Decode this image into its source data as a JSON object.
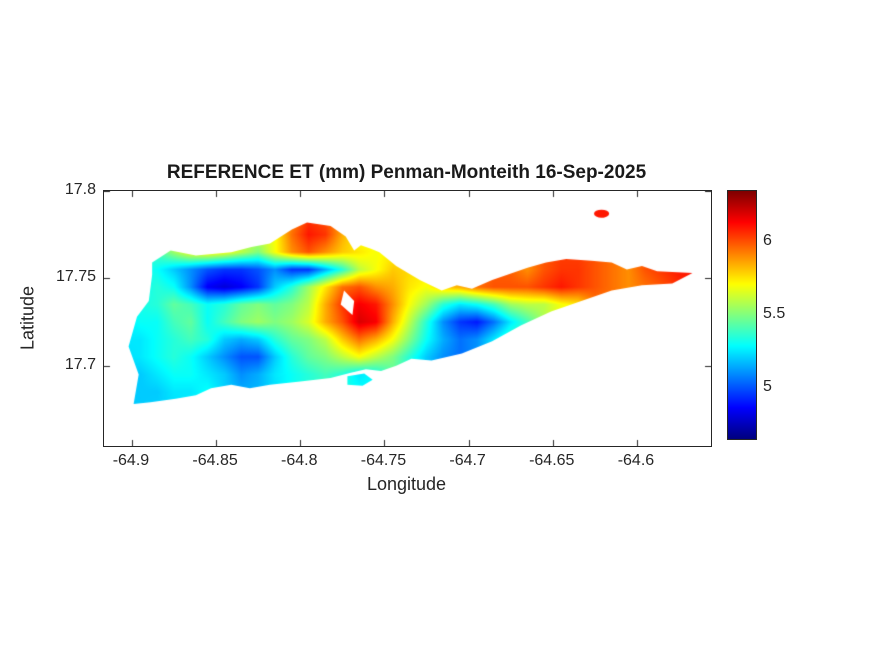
{
  "figure": {
    "title": "REFERENCE ET (mm) Penman-Monteith 16-Sep-2025",
    "background": "#ffffff",
    "axis_color": "#262626"
  },
  "axes": {
    "xlabel": "Longitude",
    "ylabel": "Latitude",
    "xlim": [
      -64.9166,
      -64.556
    ],
    "ylim": [
      17.654,
      17.8
    ],
    "xticks": [
      -64.9,
      -64.85,
      -64.8,
      -64.75,
      -64.7,
      -64.65,
      -64.6
    ],
    "xtick_labels": [
      "-64.9",
      "-64.85",
      "-64.8",
      "-64.75",
      "-64.7",
      "-64.65",
      "-64.6"
    ],
    "yticks": [
      17.8,
      17.75,
      17.7
    ],
    "ytick_labels": [
      "17.8",
      "17.75",
      "17.7"
    ],
    "axis_color": "#262626",
    "grid": false,
    "box": true
  },
  "colorbar": {
    "colormap": "jet",
    "vmin": 4.65,
    "vmax": 6.35,
    "ticks": [
      6,
      5.5,
      5
    ],
    "tick_labels": [
      "6",
      "5.5",
      "5"
    ],
    "position": "right"
  },
  "chart_data": {
    "type": "heatmap",
    "title": "REFERENCE ET (mm) Penman-Monteith 16-Sep-2025",
    "xlabel": "Longitude",
    "ylabel": "Latitude",
    "units": "mm",
    "colormap": "jet",
    "value_range": [
      4.65,
      6.35
    ],
    "legend_position": "right-colorbar",
    "grid": {
      "lon_start": -64.905,
      "lon_step": 0.01,
      "ncols": 36,
      "lat_start": 17.785,
      "lat_step": -0.01,
      "nrows": 13,
      "values": [
        [
          null,
          null,
          null,
          null,
          null,
          null,
          null,
          null,
          null,
          null,
          5.9,
          6.05,
          6.0,
          null,
          null,
          null,
          null,
          null,
          null,
          null,
          null,
          null,
          null,
          null,
          null,
          null,
          null,
          null,
          6.1,
          null,
          null,
          null,
          null,
          null,
          null,
          null
        ],
        [
          null,
          null,
          null,
          null,
          null,
          null,
          null,
          null,
          null,
          5.7,
          5.95,
          6.1,
          6.05,
          5.85,
          5.7,
          null,
          null,
          null,
          null,
          null,
          null,
          null,
          null,
          null,
          null,
          null,
          null,
          null,
          null,
          null,
          null,
          null,
          null,
          null,
          null,
          null
        ],
        [
          null,
          null,
          5.4,
          5.55,
          5.7,
          5.75,
          5.7,
          5.6,
          5.5,
          5.7,
          5.9,
          6.0,
          5.9,
          5.8,
          5.75,
          5.7,
          null,
          null,
          null,
          null,
          null,
          null,
          null,
          null,
          null,
          null,
          null,
          null,
          null,
          null,
          null,
          null,
          null,
          null,
          null,
          null
        ],
        [
          null,
          null,
          5.3,
          5.2,
          5.1,
          5.0,
          4.95,
          4.95,
          5.0,
          5.1,
          4.95,
          4.95,
          5.15,
          5.35,
          5.6,
          5.7,
          5.8,
          null,
          null,
          null,
          null,
          null,
          null,
          null,
          5.9,
          6.0,
          6.05,
          6.05,
          6.0,
          5.95,
          5.9,
          6.0,
          6.05,
          6.1,
          6.1,
          null
        ],
        [
          null,
          5.3,
          5.35,
          5.3,
          5.1,
          4.85,
          4.8,
          4.85,
          4.95,
          5.2,
          5.35,
          5.55,
          5.75,
          5.95,
          6.0,
          5.9,
          5.85,
          5.75,
          5.7,
          5.8,
          5.85,
          5.95,
          6.0,
          6.0,
          6.0,
          6.05,
          6.1,
          6.05,
          6.0,
          5.95,
          5.9,
          5.95,
          6.0,
          null,
          null,
          null
        ],
        [
          null,
          null,
          5.35,
          5.45,
          5.4,
          5.3,
          5.35,
          5.45,
          5.5,
          5.45,
          5.5,
          5.6,
          5.85,
          6.05,
          6.15,
          6.1,
          5.9,
          5.7,
          5.55,
          5.35,
          5.25,
          5.3,
          5.4,
          5.55,
          5.6,
          5.6,
          5.7,
          5.75,
          null,
          null,
          null,
          null,
          null,
          null,
          null,
          null
        ],
        [
          null,
          null,
          5.3,
          5.4,
          5.45,
          5.3,
          5.4,
          5.5,
          5.55,
          5.5,
          5.55,
          5.65,
          5.85,
          6.0,
          6.2,
          6.15,
          5.85,
          5.6,
          5.35,
          5.1,
          4.95,
          4.9,
          5.05,
          5.25,
          5.4,
          null,
          null,
          null,
          null,
          null,
          null,
          null,
          null,
          null,
          null,
          null
        ],
        [
          null,
          5.25,
          5.3,
          5.35,
          5.4,
          5.35,
          5.2,
          5.15,
          5.2,
          5.35,
          5.45,
          5.5,
          5.6,
          5.8,
          5.95,
          5.85,
          5.7,
          5.5,
          5.3,
          5.15,
          5.05,
          5.1,
          5.25,
          5.4,
          null,
          null,
          null,
          null,
          null,
          null,
          null,
          null,
          null,
          null,
          null,
          null
        ],
        [
          null,
          5.25,
          5.3,
          5.35,
          5.3,
          5.2,
          5.1,
          5.0,
          5.0,
          5.2,
          5.35,
          5.45,
          5.5,
          5.6,
          5.7,
          5.6,
          5.5,
          5.35,
          5.2,
          5.1,
          5.05,
          null,
          null,
          null,
          null,
          null,
          null,
          null,
          null,
          null,
          null,
          null,
          null,
          null,
          null,
          null
        ],
        [
          null,
          5.2,
          5.25,
          5.3,
          5.3,
          5.25,
          5.2,
          5.1,
          5.15,
          5.25,
          5.3,
          5.35,
          5.4,
          5.35,
          5.25,
          5.3,
          null,
          null,
          null,
          null,
          null,
          null,
          null,
          null,
          null,
          null,
          null,
          null,
          null,
          null,
          null,
          null,
          null,
          null,
          null,
          null
        ],
        [
          null,
          5.2,
          5.2,
          5.25,
          5.25,
          5.3,
          null,
          null,
          null,
          null,
          null,
          null,
          null,
          null,
          null,
          null,
          null,
          null,
          null,
          null,
          null,
          null,
          null,
          null,
          null,
          null,
          null,
          null,
          null,
          null,
          null,
          null,
          null,
          null,
          null,
          null
        ],
        [
          null,
          5.2,
          null,
          null,
          null,
          null,
          null,
          null,
          null,
          null,
          null,
          null,
          null,
          null,
          null,
          null,
          null,
          null,
          null,
          null,
          null,
          null,
          null,
          null,
          null,
          null,
          null,
          null,
          null,
          null,
          null,
          null,
          null,
          null,
          null,
          null
        ],
        [
          null,
          null,
          null,
          null,
          null,
          null,
          null,
          null,
          null,
          null,
          null,
          null,
          null,
          null,
          null,
          null,
          null,
          null,
          null,
          null,
          null,
          null,
          null,
          null,
          null,
          null,
          null,
          null,
          null,
          null,
          null,
          null,
          null,
          null,
          null,
          null
        ]
      ]
    },
    "island_outline": [
      [
        -64.902,
        17.711
      ],
      [
        -64.897,
        17.728
      ],
      [
        -64.89,
        17.737
      ],
      [
        -64.888,
        17.752
      ],
      [
        -64.888,
        17.759
      ],
      [
        -64.877,
        17.766
      ],
      [
        -64.862,
        17.763
      ],
      [
        -64.841,
        17.765
      ],
      [
        -64.829,
        17.768
      ],
      [
        -64.818,
        17.77
      ],
      [
        -64.805,
        17.778
      ],
      [
        -64.796,
        17.782
      ],
      [
        -64.789,
        17.781
      ],
      [
        -64.782,
        17.78
      ],
      [
        -64.773,
        17.774
      ],
      [
        -64.768,
        17.766
      ],
      [
        -64.764,
        17.769
      ],
      [
        -64.758,
        17.767
      ],
      [
        -64.753,
        17.765
      ],
      [
        -64.743,
        17.757
      ],
      [
        -64.729,
        17.749
      ],
      [
        -64.716,
        17.743
      ],
      [
        -64.707,
        17.746
      ],
      [
        -64.698,
        17.744
      ],
      [
        -64.686,
        17.749
      ],
      [
        -64.674,
        17.753
      ],
      [
        -64.665,
        17.756
      ],
      [
        -64.654,
        17.759
      ],
      [
        -64.642,
        17.761
      ],
      [
        -64.627,
        17.76
      ],
      [
        -64.615,
        17.759
      ],
      [
        -64.606,
        17.755
      ],
      [
        -64.597,
        17.757
      ],
      [
        -64.588,
        17.754
      ],
      [
        -64.567,
        17.753
      ],
      [
        -64.579,
        17.747
      ],
      [
        -64.597,
        17.746
      ],
      [
        -64.615,
        17.743
      ],
      [
        -64.633,
        17.737
      ],
      [
        -64.651,
        17.731
      ],
      [
        -64.669,
        17.723
      ],
      [
        -64.686,
        17.714
      ],
      [
        -64.704,
        17.707
      ],
      [
        -64.722,
        17.703
      ],
      [
        -64.734,
        17.704
      ],
      [
        -64.743,
        17.7
      ],
      [
        -64.752,
        17.697
      ],
      [
        -64.761,
        17.698
      ],
      [
        -64.77,
        17.696
      ],
      [
        -64.782,
        17.693
      ],
      [
        -64.8,
        17.691
      ],
      [
        -64.818,
        17.689
      ],
      [
        -64.83,
        17.687
      ],
      [
        -64.841,
        17.689
      ],
      [
        -64.853,
        17.687
      ],
      [
        -64.862,
        17.683
      ],
      [
        -64.874,
        17.681
      ],
      [
        -64.889,
        17.679
      ],
      [
        -64.899,
        17.678
      ],
      [
        -64.896,
        17.695
      ]
    ],
    "island_hole": [
      [
        -64.774,
        17.743
      ],
      [
        -64.768,
        17.737
      ],
      [
        -64.769,
        17.729
      ],
      [
        -64.776,
        17.735
      ]
    ],
    "islet_outline": [
      [
        -64.772,
        17.694
      ],
      [
        -64.762,
        17.6955
      ],
      [
        -64.757,
        17.692
      ],
      [
        -64.763,
        17.6885
      ],
      [
        -64.772,
        17.689
      ]
    ],
    "north_cay": {
      "center": [
        -64.621,
        17.787
      ],
      "rx": 0.0045,
      "ry": 0.0023
    }
  }
}
